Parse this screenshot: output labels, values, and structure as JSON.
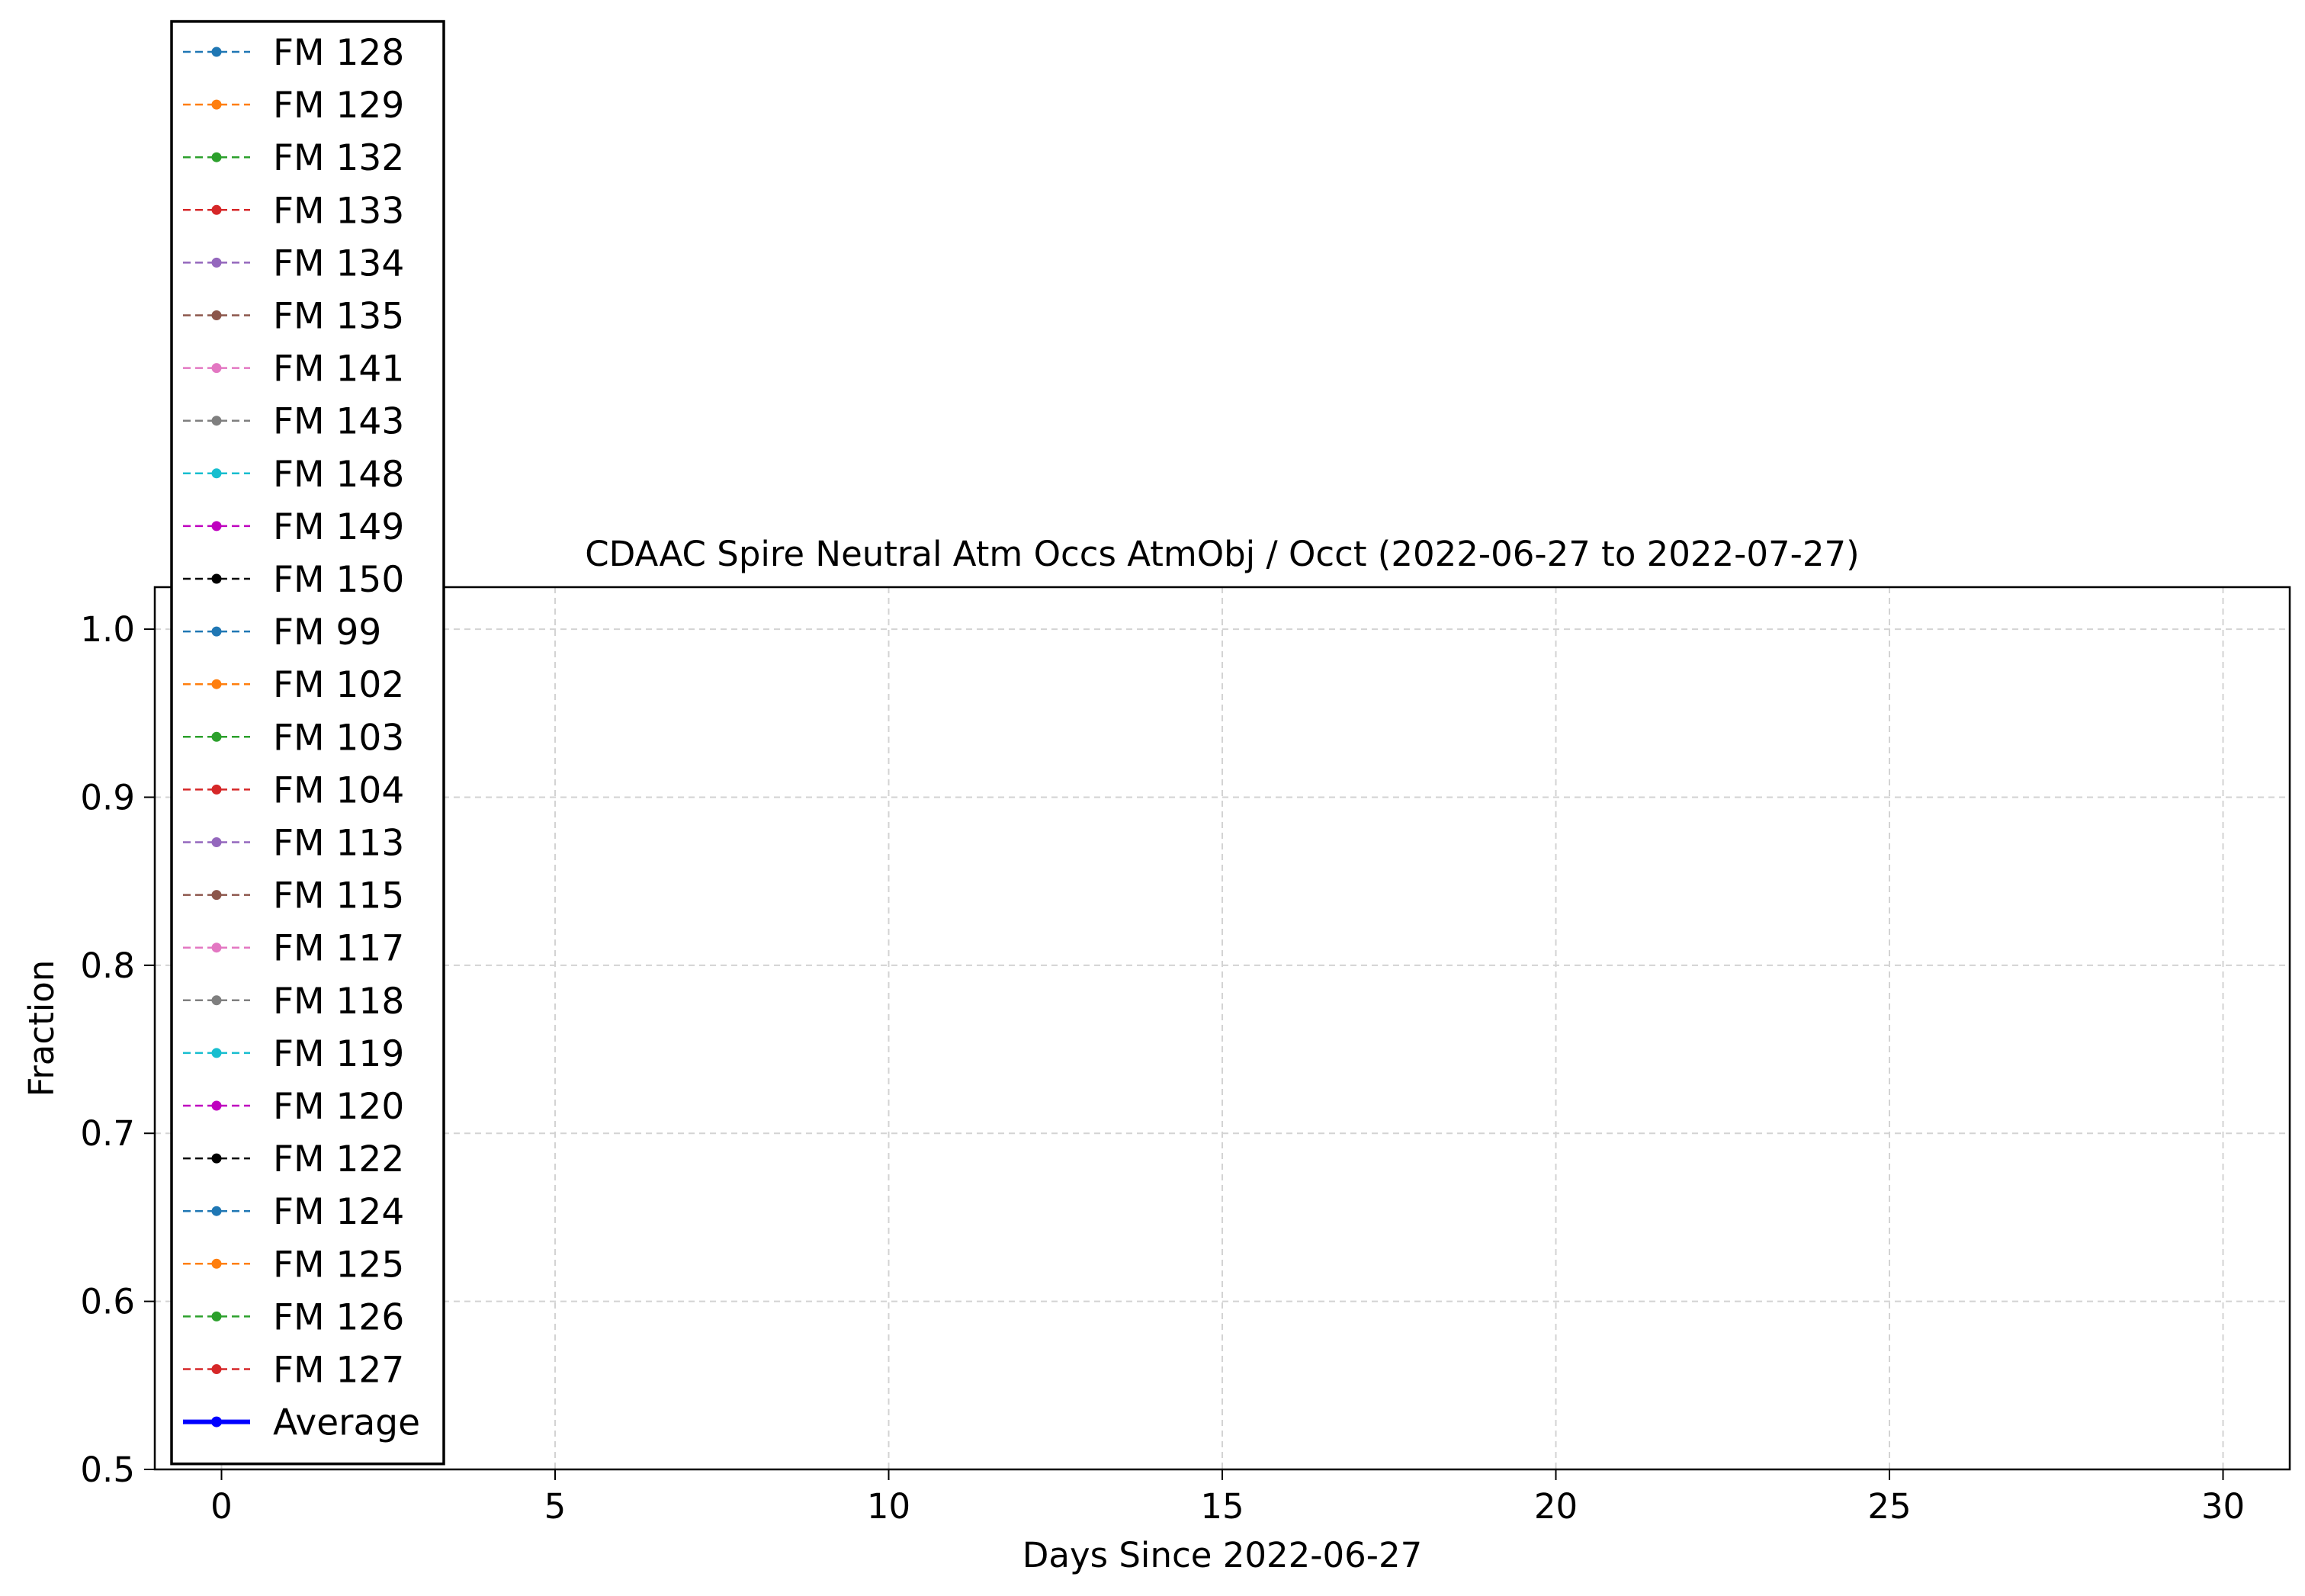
{
  "chart_data": {
    "type": "line",
    "title": "CDAAC Spire Neutral Atm Occs AtmObj / Occt (2022-06-27 to 2022-07-27)",
    "xlabel": "Days Since 2022-06-27",
    "ylabel": "Fraction",
    "xlim": [
      -1,
      31
    ],
    "ylim": [
      0.5,
      1.025
    ],
    "xticks": [
      "0",
      "5",
      "10",
      "15",
      "20",
      "25",
      "30"
    ],
    "xtick_values": [
      0,
      5,
      10,
      15,
      20,
      25,
      30
    ],
    "yticks": [
      "0.5",
      "0.6",
      "0.7",
      "0.8",
      "0.9",
      "1.0"
    ],
    "ytick_values": [
      0.5,
      0.6,
      0.7,
      0.8,
      0.9,
      1.0
    ],
    "grid": true,
    "legend_position": "upper-left",
    "series": [
      {
        "name": "FM 128",
        "color": "#1f77b4",
        "style": "dashed",
        "values": []
      },
      {
        "name": "FM 129",
        "color": "#ff7f0e",
        "style": "dashed",
        "values": []
      },
      {
        "name": "FM 132",
        "color": "#2ca02c",
        "style": "dashed",
        "values": []
      },
      {
        "name": "FM 133",
        "color": "#d62728",
        "style": "dashed",
        "values": []
      },
      {
        "name": "FM 134",
        "color": "#9467bd",
        "style": "dashed",
        "values": []
      },
      {
        "name": "FM 135",
        "color": "#8c564b",
        "style": "dashed",
        "values": []
      },
      {
        "name": "FM 141",
        "color": "#e377c2",
        "style": "dashed",
        "values": []
      },
      {
        "name": "FM 143",
        "color": "#7f7f7f",
        "style": "dashed",
        "values": []
      },
      {
        "name": "FM 148",
        "color": "#17becf",
        "style": "dashed",
        "values": []
      },
      {
        "name": "FM 149",
        "color": "#bf00bf",
        "style": "dashed",
        "values": []
      },
      {
        "name": "FM 150",
        "color": "#000000",
        "style": "dashed",
        "values": []
      },
      {
        "name": "FM 99",
        "color": "#1f77b4",
        "style": "dashed",
        "values": []
      },
      {
        "name": "FM 102",
        "color": "#ff7f0e",
        "style": "dashed",
        "values": []
      },
      {
        "name": "FM 103",
        "color": "#2ca02c",
        "style": "dashed",
        "values": []
      },
      {
        "name": "FM 104",
        "color": "#d62728",
        "style": "dashed",
        "values": []
      },
      {
        "name": "FM 113",
        "color": "#9467bd",
        "style": "dashed",
        "values": []
      },
      {
        "name": "FM 115",
        "color": "#8c564b",
        "style": "dashed",
        "values": []
      },
      {
        "name": "FM 117",
        "color": "#e377c2",
        "style": "dashed",
        "values": []
      },
      {
        "name": "FM 118",
        "color": "#7f7f7f",
        "style": "dashed",
        "values": []
      },
      {
        "name": "FM 119",
        "color": "#17becf",
        "style": "dashed",
        "values": []
      },
      {
        "name": "FM 120",
        "color": "#bf00bf",
        "style": "dashed",
        "values": []
      },
      {
        "name": "FM 122",
        "color": "#000000",
        "style": "dashed",
        "values": []
      },
      {
        "name": "FM 124",
        "color": "#1f77b4",
        "style": "dashed",
        "values": []
      },
      {
        "name": "FM 125",
        "color": "#ff7f0e",
        "style": "dashed",
        "values": []
      },
      {
        "name": "FM 126",
        "color": "#2ca02c",
        "style": "dashed",
        "values": []
      },
      {
        "name": "FM 127",
        "color": "#d62728",
        "style": "dashed",
        "values": []
      },
      {
        "name": "Average",
        "color": "#0000ff",
        "style": "solid",
        "values": []
      }
    ]
  }
}
